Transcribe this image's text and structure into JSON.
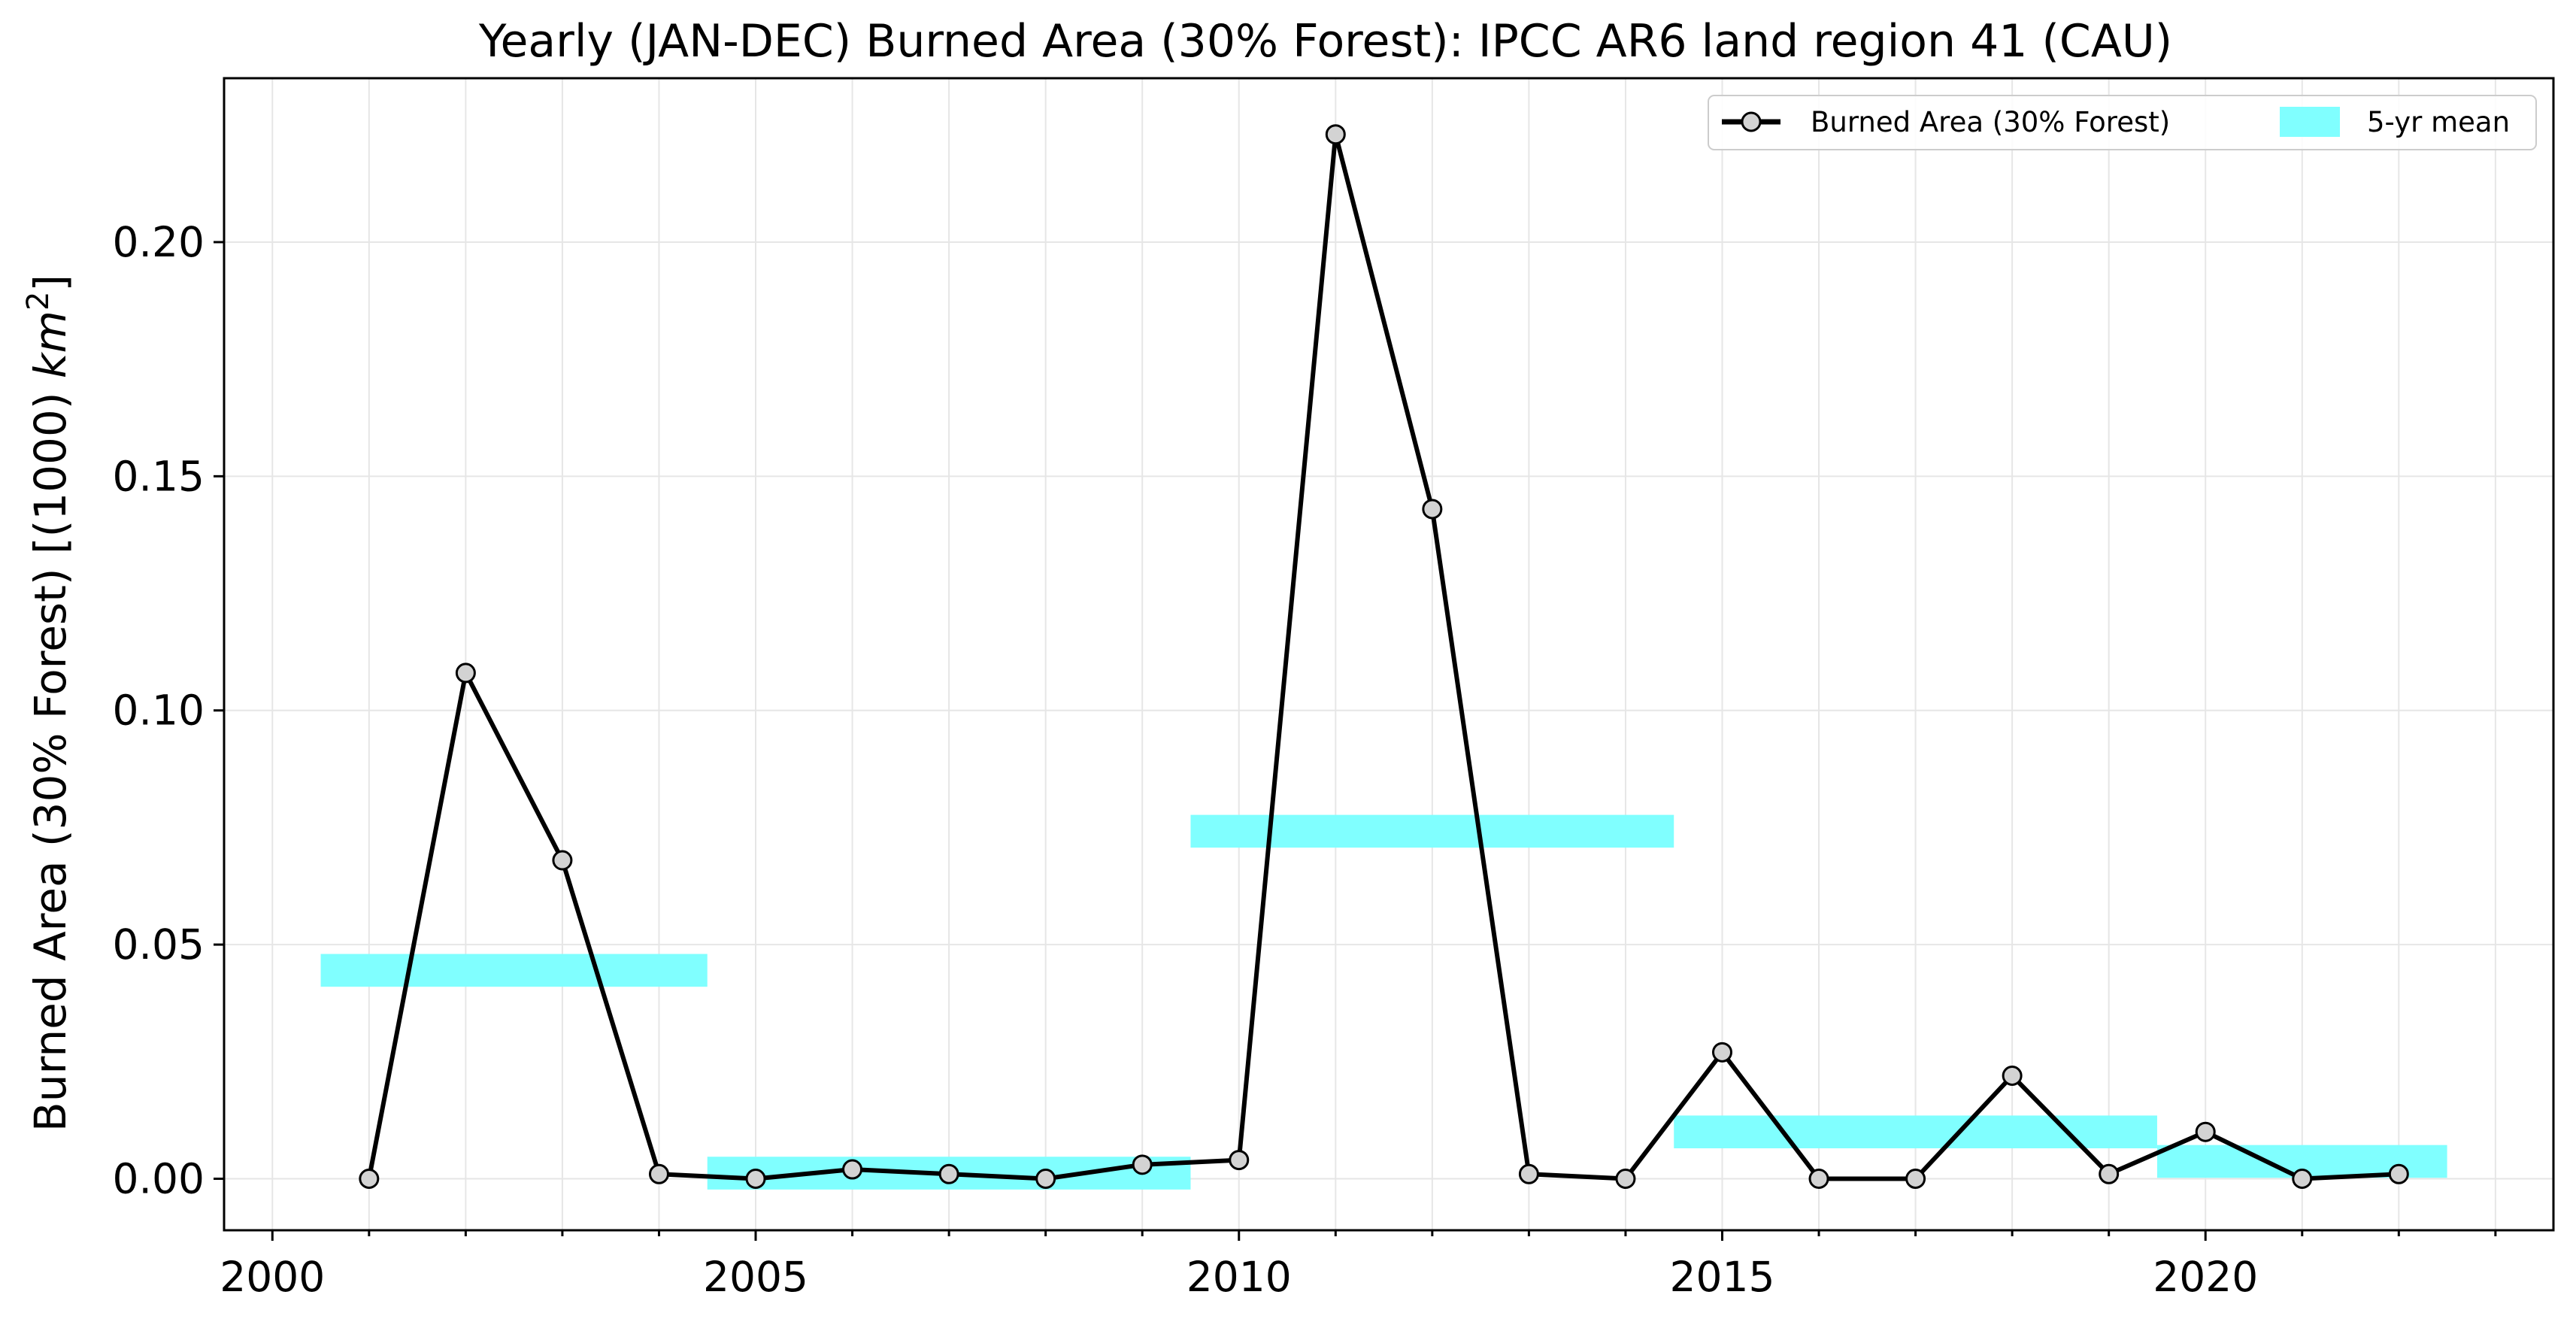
{
  "chart_data": {
    "type": "line",
    "title": "Yearly (JAN-DEC) Burned Area (30% Forest): IPCC AR6 land region 41 (CAU)",
    "xlabel": "",
    "ylabel_main": "Burned Area (30% Forest) [(1000) ",
    "ylabel_unit": "km",
    "ylabel_exp": "2",
    "ylabel_close": "]",
    "xlim": [
      1999.5,
      2023.6
    ],
    "ylim": [
      -0.011,
      0.235
    ],
    "x_ticks": [
      2000,
      2005,
      2010,
      2015,
      2020
    ],
    "x_tick_labels": [
      "2000",
      "2005",
      "2010",
      "2015",
      "2020"
    ],
    "y_ticks": [
      0.0,
      0.05,
      0.1,
      0.15,
      0.2
    ],
    "y_tick_labels": [
      "0.00",
      "0.05",
      "0.10",
      "0.15",
      "0.20"
    ],
    "grid": true,
    "legend_position": "top-right",
    "series": [
      {
        "name": "Burned Area (30% Forest)",
        "color": "#000000",
        "marker_fill": "#d3d3d3",
        "x": [
          2001,
          2002,
          2003,
          2004,
          2005,
          2006,
          2007,
          2008,
          2009,
          2010,
          2011,
          2012,
          2013,
          2014,
          2015,
          2016,
          2017,
          2018,
          2019,
          2020,
          2021,
          2022
        ],
        "y": [
          0.0,
          0.108,
          0.068,
          0.001,
          0.0,
          0.002,
          0.001,
          0.0,
          0.003,
          0.004,
          0.223,
          0.143,
          0.001,
          0.0,
          0.027,
          0.0,
          0.0,
          0.022,
          0.001,
          0.01,
          0.0,
          0.001
        ]
      }
    ],
    "five_yr_mean": {
      "name": "5-yr mean",
      "color": "#80ffff",
      "band_halfwidth": 0.0035,
      "segments": [
        {
          "x_start": 2000.5,
          "x_end": 2004.5,
          "value": 0.0445
        },
        {
          "x_start": 2004.5,
          "x_end": 2009.5,
          "value": 0.0012
        },
        {
          "x_start": 2009.5,
          "x_end": 2014.5,
          "value": 0.0742
        },
        {
          "x_start": 2014.5,
          "x_end": 2019.5,
          "value": 0.01
        },
        {
          "x_start": 2019.5,
          "x_end": 2022.5,
          "value": 0.0037
        }
      ]
    }
  }
}
